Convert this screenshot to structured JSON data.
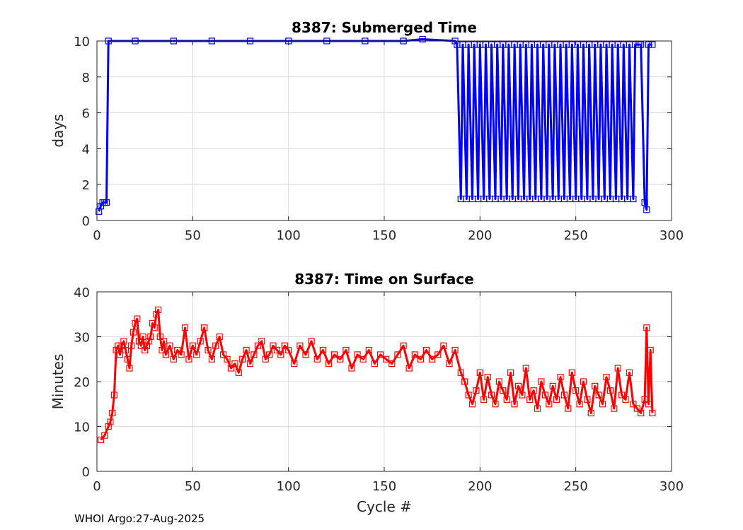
{
  "figure": {
    "footer": "WHOI Argo:27-Aug-2025"
  },
  "chart_data": [
    {
      "type": "line",
      "title": "8387: Submerged Time",
      "xlabel": "",
      "ylabel": "days",
      "xlim": [
        0,
        300
      ],
      "ylim": [
        0,
        10
      ],
      "xticks": [
        "0",
        "50",
        "100",
        "150",
        "200",
        "250",
        "300"
      ],
      "yticks": [
        "0",
        "2",
        "4",
        "6",
        "8",
        "10"
      ],
      "grid": true,
      "color": "#0000ff",
      "marker": "square",
      "series": [
        {
          "name": "Submerged Time",
          "x": [
            1,
            2,
            3,
            4,
            5,
            6,
            20,
            40,
            60,
            80,
            100,
            120,
            140,
            160,
            170,
            187,
            188,
            190,
            191,
            193,
            194,
            196,
            197,
            199,
            200,
            202,
            203,
            205,
            206,
            208,
            209,
            211,
            212,
            214,
            215,
            217,
            218,
            220,
            221,
            223,
            224,
            226,
            227,
            229,
            230,
            232,
            233,
            235,
            236,
            238,
            239,
            241,
            242,
            244,
            245,
            247,
            248,
            250,
            251,
            253,
            254,
            256,
            257,
            259,
            260,
            262,
            263,
            265,
            266,
            268,
            269,
            271,
            272,
            274,
            275,
            277,
            278,
            280,
            281,
            283,
            284,
            286,
            287,
            288,
            290
          ],
          "values": [
            0.5,
            0.8,
            1.0,
            1.0,
            1.0,
            10.0,
            10.0,
            10.0,
            10.0,
            10.0,
            10.0,
            10.0,
            10.0,
            10.0,
            10.1,
            10.0,
            9.8,
            1.2,
            9.8,
            1.2,
            9.8,
            1.2,
            9.8,
            1.2,
            9.8,
            1.2,
            9.8,
            1.2,
            9.8,
            1.2,
            9.8,
            1.2,
            9.8,
            1.2,
            9.8,
            1.2,
            9.8,
            1.2,
            9.8,
            1.2,
            9.8,
            1.2,
            9.8,
            1.2,
            9.8,
            1.2,
            9.8,
            1.2,
            9.8,
            1.2,
            9.8,
            1.2,
            9.8,
            1.2,
            9.8,
            1.2,
            9.8,
            1.2,
            9.8,
            1.2,
            9.8,
            1.2,
            9.8,
            1.2,
            9.8,
            1.2,
            9.8,
            1.2,
            9.8,
            1.2,
            9.8,
            1.2,
            9.8,
            1.2,
            9.8,
            1.2,
            9.8,
            1.2,
            9.8,
            9.8,
            9.8,
            1.0,
            0.6,
            9.8,
            9.8
          ]
        }
      ]
    },
    {
      "type": "line",
      "title": "8387: Time on Surface",
      "xlabel": "Cycle #",
      "ylabel": "Minutes",
      "xlim": [
        0,
        300
      ],
      "ylim": [
        0,
        40
      ],
      "xticks": [
        "0",
        "50",
        "100",
        "150",
        "200",
        "250",
        "300"
      ],
      "yticks": [
        "0",
        "10",
        "20",
        "30",
        "40"
      ],
      "grid": true,
      "color": "#ff0000",
      "marker": "square",
      "series": [
        {
          "name": "Time on Surface",
          "x": [
            2,
            4,
            6,
            7,
            8,
            9,
            10,
            11,
            12,
            13,
            14,
            15,
            16,
            17,
            18,
            19,
            20,
            21,
            22,
            23,
            24,
            25,
            26,
            27,
            28,
            29,
            30,
            31,
            32,
            33,
            34,
            35,
            36,
            38,
            40,
            42,
            44,
            46,
            48,
            50,
            52,
            54,
            56,
            58,
            60,
            62,
            64,
            66,
            68,
            70,
            72,
            74,
            76,
            78,
            80,
            82,
            84,
            86,
            88,
            90,
            92,
            94,
            96,
            98,
            100,
            103,
            106,
            109,
            112,
            115,
            118,
            121,
            124,
            127,
            130,
            133,
            136,
            139,
            142,
            145,
            148,
            151,
            154,
            157,
            160,
            163,
            166,
            169,
            172,
            175,
            178,
            181,
            184,
            187,
            190,
            192,
            194,
            196,
            198,
            200,
            202,
            204,
            206,
            208,
            210,
            212,
            214,
            216,
            218,
            220,
            222,
            224,
            226,
            228,
            230,
            232,
            234,
            236,
            238,
            240,
            242,
            244,
            246,
            248,
            250,
            252,
            254,
            256,
            258,
            260,
            262,
            264,
            266,
            268,
            270,
            272,
            274,
            276,
            278,
            280,
            282,
            284,
            286,
            287,
            288,
            289,
            290
          ],
          "values": [
            7,
            8,
            10,
            11,
            13,
            17,
            27,
            28,
            26,
            28,
            29,
            27,
            25,
            23,
            28,
            31,
            33,
            34,
            29,
            28,
            30,
            27,
            28,
            29,
            30,
            33,
            32,
            35,
            36,
            30,
            27,
            29,
            26,
            28,
            25,
            27,
            26,
            32,
            25,
            28,
            26,
            29,
            32,
            27,
            25,
            28,
            30,
            26,
            25,
            23,
            24,
            22,
            25,
            27,
            24,
            26,
            28,
            29,
            25,
            26,
            28,
            27,
            26,
            28,
            27,
            24,
            28,
            26,
            29,
            25,
            27,
            24,
            26,
            25,
            27,
            23,
            26,
            25,
            27,
            24,
            26,
            25,
            24,
            26,
            28,
            23,
            26,
            25,
            27,
            25,
            26,
            28,
            24,
            27,
            22,
            20,
            17,
            15,
            18,
            22,
            16,
            21,
            17,
            15,
            20,
            18,
            16,
            22,
            15,
            19,
            17,
            23,
            16,
            18,
            14,
            20,
            17,
            15,
            19,
            16,
            21,
            17,
            14,
            22,
            18,
            15,
            20,
            16,
            13,
            19,
            17,
            15,
            21,
            18,
            14,
            23,
            17,
            16,
            22,
            15,
            14,
            13,
            16,
            32,
            15,
            27,
            13
          ]
        }
      ]
    }
  ]
}
